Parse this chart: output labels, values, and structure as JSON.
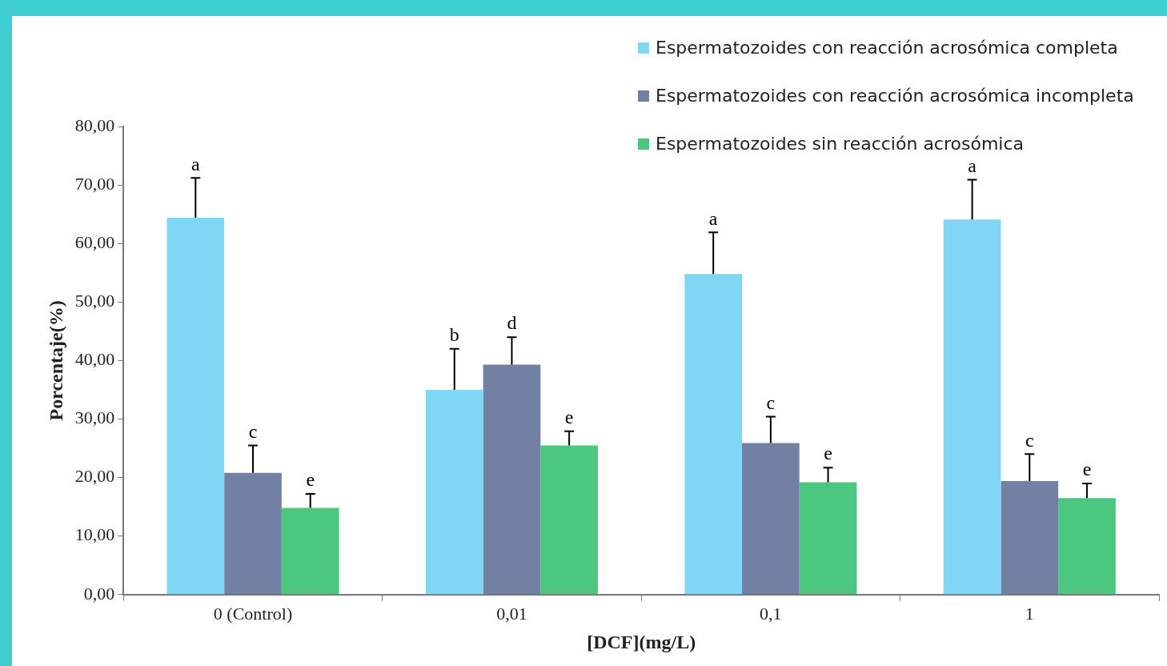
{
  "chart_data": {
    "type": "bar",
    "xlabel": "[DCF](mg/L)",
    "ylabel": "Porcentaje(%)",
    "categories": [
      "0 (Control)",
      "0,01",
      "0,1",
      "1"
    ],
    "series": [
      {
        "name": "Espermatozoides con reacción acrosómica completa",
        "color": "#7fd6f5",
        "values": [
          64.4,
          35.0,
          54.8,
          64.1
        ],
        "errors": [
          [
            64.4,
            71.2
          ],
          [
            35.0,
            42.0
          ],
          [
            54.8,
            61.9
          ],
          [
            64.1,
            70.9
          ]
        ],
        "value_labels": [
          "a",
          "b",
          "a",
          "a"
        ]
      },
      {
        "name": "Espermatozoides con reacción acrosómica incompleta",
        "color": "#7180a3",
        "values": [
          20.8,
          39.3,
          25.9,
          19.4
        ],
        "errors": [
          [
            20.8,
            25.5
          ],
          [
            39.3,
            44.0
          ],
          [
            25.9,
            30.4
          ],
          [
            19.4,
            24.0
          ]
        ],
        "value_labels": [
          "c",
          "d",
          "c",
          "c"
        ]
      },
      {
        "name": "Espermatozoides sin reacción acrosómica",
        "color": "#4cc77f",
        "values": [
          14.8,
          25.5,
          19.2,
          16.5
        ],
        "errors": [
          [
            14.8,
            17.2
          ],
          [
            25.5,
            27.9
          ],
          [
            19.2,
            21.7
          ],
          [
            16.5,
            19.0
          ]
        ],
        "value_labels": [
          "e",
          "e",
          "e",
          "e"
        ]
      }
    ],
    "ylim": [
      0,
      80
    ],
    "yticks": [
      {
        "value": 0,
        "label": "0,00"
      },
      {
        "value": 10,
        "label": "10,00"
      },
      {
        "value": 20,
        "label": "20,00"
      },
      {
        "value": 30,
        "label": "30,00"
      },
      {
        "value": 40,
        "label": "40,00"
      },
      {
        "value": 50,
        "label": "50,00"
      },
      {
        "value": 60,
        "label": "60,00"
      },
      {
        "value": 70,
        "label": "70,00"
      },
      {
        "value": 80,
        "label": "80,00"
      }
    ],
    "grid": false,
    "legend": "top right"
  }
}
